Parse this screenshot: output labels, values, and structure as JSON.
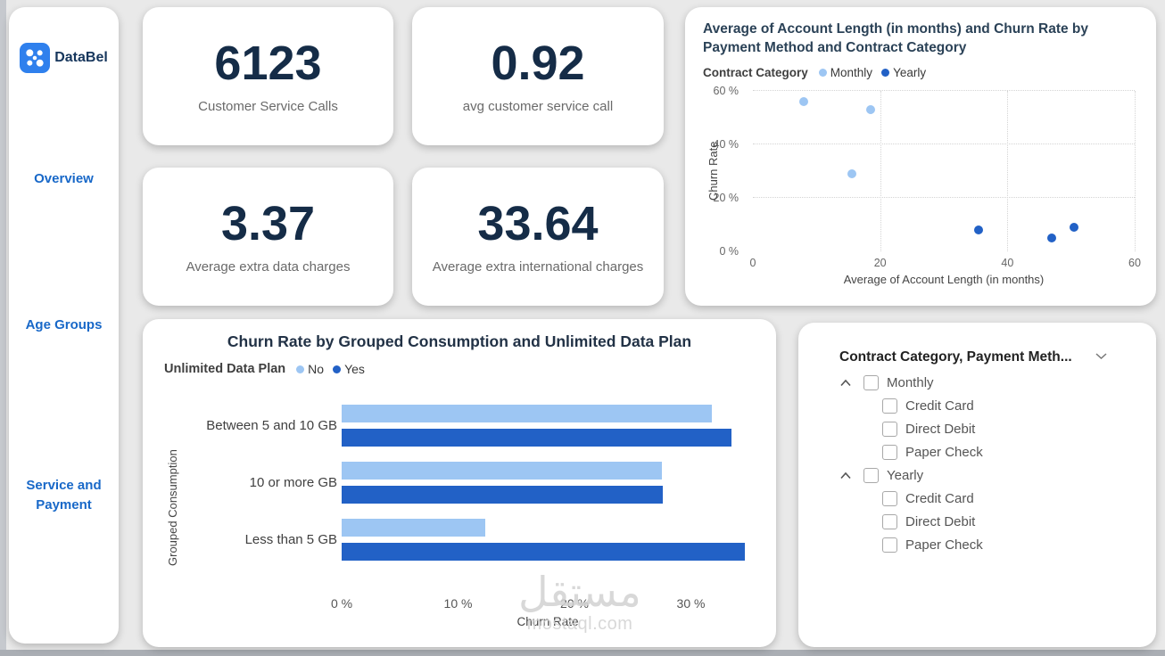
{
  "colors": {
    "light_blue": "#9DC6F3",
    "dark_blue": "#2261C6",
    "navy_text": "#16365C",
    "nav_blue": "#1868C8"
  },
  "logo": {
    "text": "DataBel"
  },
  "sidebar": {
    "items": [
      {
        "label": "Overview"
      },
      {
        "label": "Age Groups"
      },
      {
        "label": "Service and Payment"
      }
    ]
  },
  "kpis": [
    {
      "value": "6123",
      "label": "Customer Service Calls"
    },
    {
      "value": "0.92",
      "label": "avg customer service call"
    },
    {
      "value": "3.37",
      "label": "Average extra data charges"
    },
    {
      "value": "33.64",
      "label": "Average extra international charges"
    }
  ],
  "slicer": {
    "title": "Contract Category, Payment Meth...",
    "groups": [
      {
        "label": "Monthly",
        "checked": false,
        "children": [
          "Credit Card",
          "Direct Debit",
          "Paper Check"
        ]
      },
      {
        "label": "Yearly",
        "checked": false,
        "children": [
          "Credit Card",
          "Direct Debit",
          "Paper Check"
        ]
      }
    ]
  },
  "watermark": {
    "word": "مستقل",
    "site": "mostaql.com"
  },
  "chart_data": [
    {
      "type": "scatter",
      "title": "Average of Account Length (in months) and Churn Rate by Payment Method and Contract Category",
      "legend_title": "Contract Category",
      "xlabel": "Average of Account Length (in months)",
      "ylabel": "Churn Rate",
      "xlim": [
        0,
        60
      ],
      "ylim": [
        0,
        60
      ],
      "x_ticks": [
        "0",
        "20",
        "40",
        "60"
      ],
      "x_tick_values": [
        0,
        20,
        40,
        60
      ],
      "y_ticks": [
        "0 %",
        "20 %",
        "40 %",
        "60 %"
      ],
      "y_tick_values": [
        0,
        20,
        40,
        60
      ],
      "grid": "dotted",
      "legend_position": "top",
      "series": [
        {
          "name": "Monthly",
          "color": "#9DC6F3",
          "points": [
            {
              "x": 8,
              "y": 56
            },
            {
              "x": 18.5,
              "y": 53
            },
            {
              "x": 15.5,
              "y": 29
            }
          ]
        },
        {
          "name": "Yearly",
          "color": "#2261C6",
          "points": [
            {
              "x": 35.5,
              "y": 8
            },
            {
              "x": 47,
              "y": 5
            },
            {
              "x": 50.5,
              "y": 9
            }
          ]
        }
      ]
    },
    {
      "type": "bar",
      "orientation": "horizontal",
      "title": "Churn Rate by Grouped Consumption and Unlimited Data Plan",
      "legend_title": "Unlimited Data Plan",
      "categories": [
        "Between 5 and 10 GB",
        "10 or more GB",
        "Less than 5 GB"
      ],
      "series": [
        {
          "name": "No",
          "color": "#9DC6F3",
          "values": [
            31.8,
            27.5,
            12.3
          ]
        },
        {
          "name": "Yes",
          "color": "#2261C6",
          "values": [
            33.5,
            27.6,
            34.6
          ]
        }
      ],
      "xlabel": "Churn Rate",
      "ylabel": "Grouped Consumption",
      "xlim": [
        0,
        35.4
      ],
      "x_ticks": [
        "0 %",
        "10 %",
        "20 %",
        "30 %"
      ],
      "x_tick_values": [
        0,
        10,
        20,
        30
      ],
      "grid": false,
      "legend_position": "top"
    }
  ]
}
